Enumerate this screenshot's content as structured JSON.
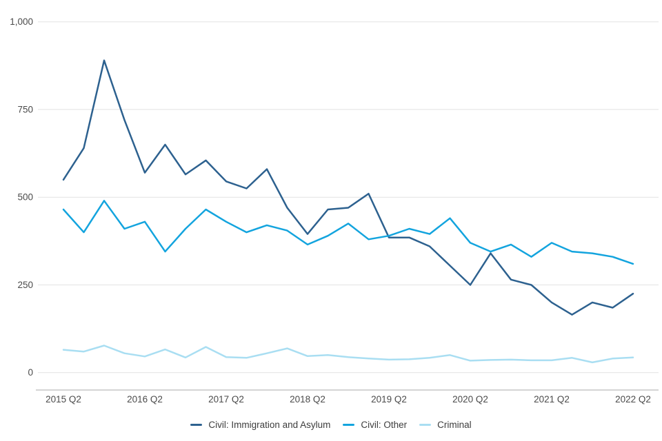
{
  "chart_data": {
    "type": "line",
    "title": "",
    "xlabel": "",
    "ylabel": "",
    "ylim": [
      0,
      1000
    ],
    "grid": true,
    "legend_position": "bottom",
    "x": [
      "2015 Q2",
      "2015 Q3",
      "2015 Q4",
      "2016 Q1",
      "2016 Q2",
      "2016 Q3",
      "2016 Q4",
      "2017 Q1",
      "2017 Q2",
      "2017 Q3",
      "2017 Q4",
      "2018 Q1",
      "2018 Q2",
      "2018 Q3",
      "2018 Q4",
      "2019 Q1",
      "2019 Q2",
      "2019 Q3",
      "2019 Q4",
      "2020 Q1",
      "2020 Q2",
      "2020 Q3",
      "2020 Q4",
      "2021 Q1",
      "2021 Q2",
      "2021 Q3",
      "2021 Q4",
      "2022 Q1",
      "2022 Q2"
    ],
    "x_tick_labels": [
      "2015 Q2",
      "2016 Q2",
      "2017 Q2",
      "2018 Q2",
      "2019 Q2",
      "2020 Q2",
      "2021 Q2",
      "2022 Q2"
    ],
    "y_tick_labels": [
      "0",
      "250",
      "500",
      "750",
      "1,000"
    ],
    "series": [
      {
        "name": "Civil: Immigration and Asylum",
        "color": "#2d618f",
        "values": [
          550,
          640,
          890,
          720,
          570,
          650,
          565,
          605,
          545,
          525,
          580,
          470,
          395,
          465,
          470,
          510,
          385,
          385,
          360,
          305,
          250,
          340,
          265,
          250,
          200,
          165,
          200,
          185,
          225
        ]
      },
      {
        "name": "Civil: Other",
        "color": "#13a4de",
        "values": [
          465,
          400,
          490,
          410,
          430,
          345,
          410,
          465,
          430,
          400,
          420,
          405,
          365,
          390,
          425,
          380,
          390,
          410,
          395,
          440,
          370,
          345,
          365,
          330,
          370,
          345,
          340,
          330,
          310
        ]
      },
      {
        "name": "Criminal",
        "color": "#a9def2",
        "values": [
          65,
          60,
          77,
          55,
          46,
          66,
          43,
          73,
          44,
          42,
          55,
          69,
          47,
          50,
          44,
          40,
          37,
          38,
          42,
          50,
          34,
          36,
          37,
          35,
          35,
          42,
          29,
          40,
          43
        ]
      }
    ],
    "colors": {
      "gridline": "#e2e2e2",
      "axis_line": "#c6c6c6",
      "tick_label": "#4a4a4a"
    }
  }
}
